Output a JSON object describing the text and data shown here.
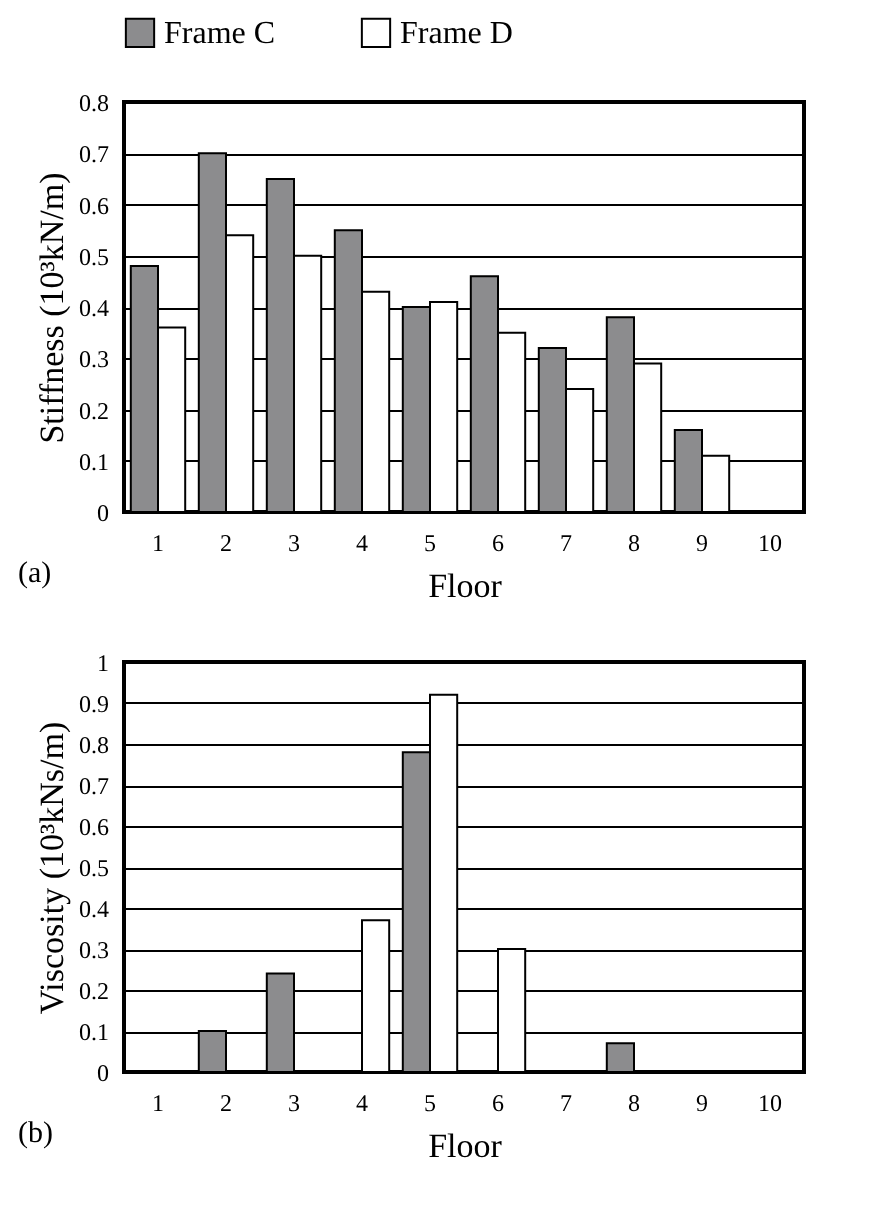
{
  "chart_data": [
    {
      "type": "bar",
      "xlabel": "Floor",
      "ylabel": "Stiffness (10³kN/m)",
      "annotations": [
        "(a)"
      ],
      "categories": [
        "1",
        "2",
        "3",
        "4",
        "5",
        "6",
        "7",
        "8",
        "9",
        "10"
      ],
      "series": [
        {
          "name": "Frame C",
          "color": "#8c8c8e",
          "values": [
            0.48,
            0.7,
            0.65,
            0.55,
            0.4,
            0.46,
            0.32,
            0.38,
            0.16,
            null
          ]
        },
        {
          "name": "Frame D",
          "color": "#ffffff",
          "values": [
            0.36,
            0.54,
            0.5,
            0.43,
            0.41,
            0.35,
            0.24,
            0.29,
            0.11,
            null
          ]
        }
      ],
      "ylim": [
        0,
        0.8
      ],
      "yticks": [
        0,
        0.1,
        0.2,
        0.3,
        0.4,
        0.5,
        0.6,
        0.7,
        0.8
      ],
      "grid": "y",
      "legend": "top"
    },
    {
      "type": "bar",
      "xlabel": "Floor",
      "ylabel": "Viscosity (10³kNs/m)",
      "annotations": [
        "(b)"
      ],
      "categories": [
        "1",
        "2",
        "3",
        "4",
        "5",
        "6",
        "7",
        "8",
        "9",
        "10"
      ],
      "series": [
        {
          "name": "Frame C",
          "color": "#8c8c8e",
          "values": [
            null,
            0.1,
            0.24,
            null,
            0.78,
            null,
            null,
            0.07,
            null,
            null
          ]
        },
        {
          "name": "Frame D",
          "color": "#ffffff",
          "values": [
            null,
            null,
            null,
            0.37,
            0.92,
            0.3,
            null,
            null,
            null,
            null
          ]
        }
      ],
      "ylim": [
        0,
        1
      ],
      "yticks": [
        0,
        0.1,
        0.2,
        0.3,
        0.4,
        0.5,
        0.6,
        0.7,
        0.8,
        0.9,
        1
      ],
      "grid": "y",
      "legend": false
    }
  ]
}
